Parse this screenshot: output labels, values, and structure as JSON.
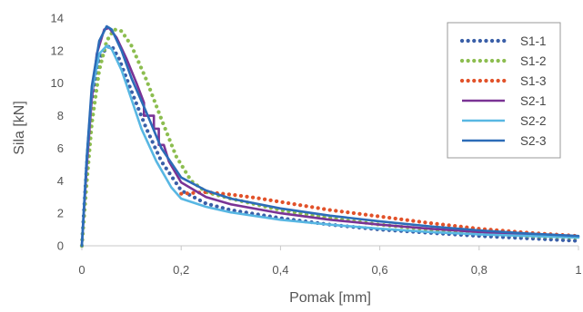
{
  "chart_data": {
    "type": "line",
    "xlabel": "Pomak [mm]",
    "ylabel": "Sila [kN]",
    "xlim": [
      0,
      1
    ],
    "ylim": [
      0,
      14
    ],
    "x_ticks": [
      {
        "value": 0,
        "label": "0"
      },
      {
        "value": 0.2,
        "label": "0,2"
      },
      {
        "value": 0.4,
        "label": "0,4"
      },
      {
        "value": 0.6,
        "label": "0,6"
      },
      {
        "value": 0.8,
        "label": "0,8"
      },
      {
        "value": 1,
        "label": "1"
      }
    ],
    "y_ticks": [
      {
        "value": 0,
        "label": "0"
      },
      {
        "value": 2,
        "label": "2"
      },
      {
        "value": 4,
        "label": "4"
      },
      {
        "value": 6,
        "label": "6"
      },
      {
        "value": 8,
        "label": "8"
      },
      {
        "value": 10,
        "label": "10"
      },
      {
        "value": 12,
        "label": "12"
      },
      {
        "value": 14,
        "label": "14"
      }
    ],
    "grid": false,
    "legend_position": "top-right",
    "series": [
      {
        "name": "S1-1",
        "style": "dotted",
        "color": "#3a5fa8",
        "points": [
          [
            0,
            0
          ],
          [
            0.01,
            5
          ],
          [
            0.02,
            9
          ],
          [
            0.035,
            11.5
          ],
          [
            0.05,
            12.2
          ],
          [
            0.06,
            12.3
          ],
          [
            0.075,
            11.5
          ],
          [
            0.1,
            9.5
          ],
          [
            0.13,
            7.2
          ],
          [
            0.16,
            5.2
          ],
          [
            0.2,
            3.4
          ],
          [
            0.25,
            2.6
          ],
          [
            0.3,
            2.2
          ],
          [
            0.4,
            1.7
          ],
          [
            0.5,
            1.3
          ],
          [
            0.6,
            1.0
          ],
          [
            0.7,
            0.8
          ],
          [
            0.8,
            0.6
          ],
          [
            0.9,
            0.45
          ],
          [
            1.0,
            0.3
          ]
        ]
      },
      {
        "name": "S1-2",
        "style": "dotted",
        "color": "#8cbd4f",
        "points": [
          [
            0,
            0
          ],
          [
            0.01,
            4
          ],
          [
            0.02,
            7.5
          ],
          [
            0.035,
            10.8
          ],
          [
            0.05,
            12.6
          ],
          [
            0.065,
            13.3
          ],
          [
            0.08,
            13.2
          ],
          [
            0.1,
            12.3
          ],
          [
            0.13,
            10.2
          ],
          [
            0.16,
            7.8
          ],
          [
            0.19,
            5.5
          ],
          [
            0.22,
            4.0
          ],
          [
            0.25,
            3.3
          ],
          [
            0.3,
            2.9
          ],
          [
            0.4,
            2.2
          ],
          [
            0.5,
            1.7
          ],
          [
            0.6,
            1.3
          ],
          [
            0.7,
            1.0
          ],
          [
            0.8,
            0.8
          ],
          [
            0.9,
            0.6
          ],
          [
            1.0,
            0.5
          ]
        ]
      },
      {
        "name": "S1-3",
        "style": "dotted",
        "color": "#e2522a",
        "points": [
          [
            0.2,
            3.2
          ],
          [
            0.25,
            3.3
          ],
          [
            0.3,
            3.15
          ],
          [
            0.35,
            2.95
          ],
          [
            0.4,
            2.7
          ],
          [
            0.45,
            2.45
          ],
          [
            0.5,
            2.2
          ],
          [
            0.6,
            1.8
          ],
          [
            0.7,
            1.4
          ],
          [
            0.8,
            1.05
          ],
          [
            0.9,
            0.8
          ],
          [
            1.0,
            0.6
          ]
        ]
      },
      {
        "name": "S2-1",
        "style": "solid",
        "color": "#7a3395",
        "points": [
          [
            0,
            0
          ],
          [
            0.01,
            5
          ],
          [
            0.02,
            9
          ],
          [
            0.03,
            11.8
          ],
          [
            0.045,
            13.3
          ],
          [
            0.055,
            13.4
          ],
          [
            0.07,
            12.8
          ],
          [
            0.09,
            11.5
          ],
          [
            0.11,
            10
          ],
          [
            0.125,
            8.8
          ],
          [
            0.125,
            8
          ],
          [
            0.145,
            8
          ],
          [
            0.145,
            7.2
          ],
          [
            0.155,
            7.2
          ],
          [
            0.155,
            6.2
          ],
          [
            0.165,
            6.2
          ],
          [
            0.175,
            5.2
          ],
          [
            0.2,
            3.9
          ],
          [
            0.25,
            3.0
          ],
          [
            0.3,
            2.55
          ],
          [
            0.4,
            2.0
          ],
          [
            0.5,
            1.6
          ],
          [
            0.6,
            1.3
          ],
          [
            0.7,
            1.05
          ],
          [
            0.8,
            0.85
          ],
          [
            0.9,
            0.7
          ],
          [
            1.0,
            0.55
          ]
        ]
      },
      {
        "name": "S2-2",
        "style": "solid",
        "color": "#58b7e3",
        "points": [
          [
            0,
            0
          ],
          [
            0.01,
            5.5
          ],
          [
            0.02,
            9.5
          ],
          [
            0.035,
            11.8
          ],
          [
            0.05,
            12.3
          ],
          [
            0.06,
            12.1
          ],
          [
            0.08,
            10.8
          ],
          [
            0.1,
            9.0
          ],
          [
            0.12,
            7.2
          ],
          [
            0.15,
            5.2
          ],
          [
            0.18,
            3.6
          ],
          [
            0.2,
            2.9
          ],
          [
            0.25,
            2.4
          ],
          [
            0.3,
            2.05
          ],
          [
            0.4,
            1.6
          ],
          [
            0.5,
            1.3
          ],
          [
            0.6,
            1.05
          ],
          [
            0.7,
            0.85
          ],
          [
            0.8,
            0.7
          ],
          [
            0.9,
            0.6
          ],
          [
            1.0,
            0.5
          ]
        ]
      },
      {
        "name": "S2-3",
        "style": "solid",
        "color": "#2c6cb8",
        "points": [
          [
            0,
            0
          ],
          [
            0.01,
            5.5
          ],
          [
            0.02,
            9.8
          ],
          [
            0.035,
            12.6
          ],
          [
            0.05,
            13.5
          ],
          [
            0.06,
            13.3
          ],
          [
            0.08,
            12
          ],
          [
            0.1,
            10.3
          ],
          [
            0.13,
            8.2
          ],
          [
            0.16,
            6.0
          ],
          [
            0.2,
            4.2
          ],
          [
            0.25,
            3.4
          ],
          [
            0.3,
            2.9
          ],
          [
            0.4,
            2.3
          ],
          [
            0.5,
            1.85
          ],
          [
            0.6,
            1.5
          ],
          [
            0.7,
            1.2
          ],
          [
            0.8,
            0.95
          ],
          [
            0.9,
            0.75
          ],
          [
            1.0,
            0.6
          ]
        ]
      }
    ]
  }
}
